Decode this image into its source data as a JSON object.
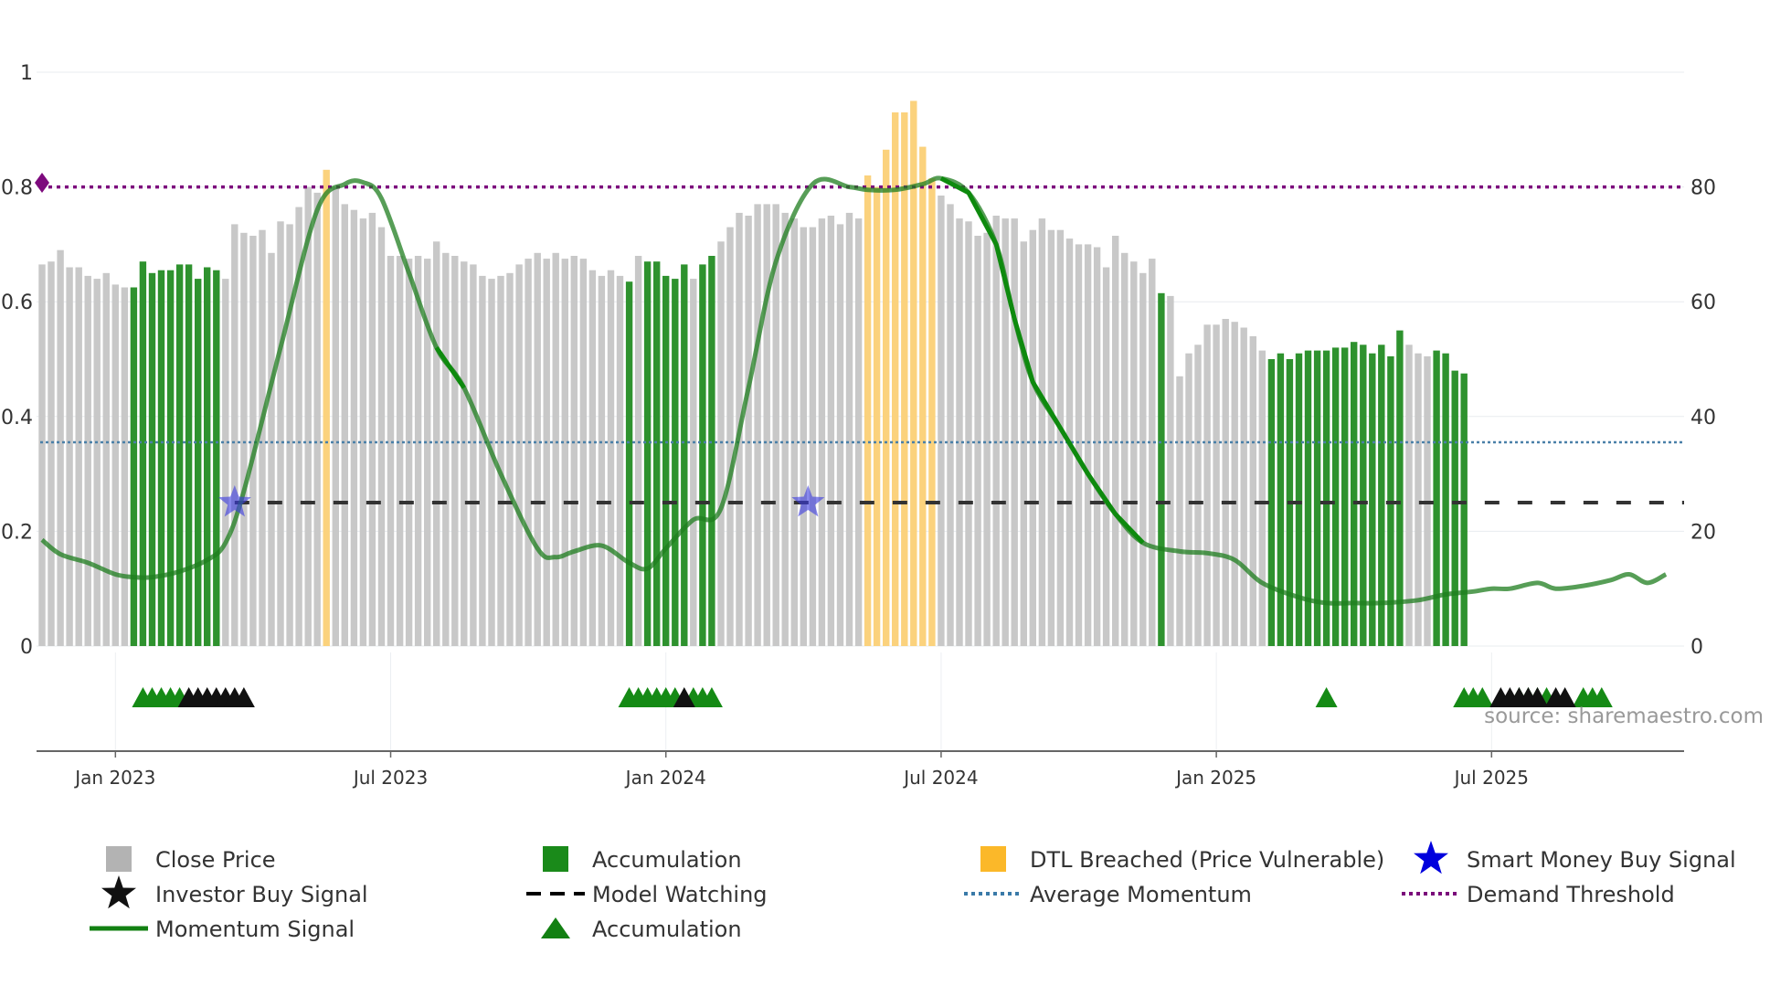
{
  "chart_data": {
    "type": "bar",
    "title": "",
    "source_text": "source: sharemaestro.com",
    "x_ticks": [
      "Jan 2023",
      "Jul 2023",
      "Jan 2024",
      "Jul 2024",
      "Jan 2025",
      "Jul 2025"
    ],
    "x_tick_index": [
      8,
      38,
      68,
      98,
      128,
      158
    ],
    "y_left": {
      "ticks": [
        0,
        0.2,
        0.4,
        0.6,
        0.8,
        1
      ],
      "labels": [
        "0",
        "0.2",
        "0.4",
        "0.6",
        "0.8",
        "1"
      ],
      "ylim": [
        0,
        1
      ]
    },
    "y_right": {
      "ticks": [
        0,
        20,
        40,
        60,
        80
      ],
      "labels": [
        "0",
        "20",
        "40",
        "60",
        "80"
      ],
      "ylim": [
        0,
        100
      ]
    },
    "price": [
      0.665,
      0.67,
      0.69,
      0.66,
      0.66,
      0.645,
      0.64,
      0.65,
      0.63,
      0.625,
      0.625,
      0.67,
      0.65,
      0.655,
      0.655,
      0.665,
      0.665,
      0.64,
      0.66,
      0.655,
      0.64,
      0.735,
      0.72,
      0.715,
      0.725,
      0.685,
      0.74,
      0.735,
      0.765,
      0.8,
      0.79,
      0.83,
      0.8,
      0.77,
      0.76,
      0.745,
      0.755,
      0.73,
      0.68,
      0.68,
      0.675,
      0.68,
      0.675,
      0.705,
      0.685,
      0.68,
      0.67,
      0.665,
      0.645,
      0.64,
      0.645,
      0.65,
      0.665,
      0.675,
      0.685,
      0.675,
      0.685,
      0.675,
      0.68,
      0.675,
      0.655,
      0.645,
      0.655,
      0.645,
      0.635,
      0.68,
      0.67,
      0.67,
      0.645,
      0.64,
      0.665,
      0.64,
      0.665,
      0.68,
      0.705,
      0.73,
      0.755,
      0.75,
      0.77,
      0.77,
      0.77,
      0.755,
      0.745,
      0.73,
      0.73,
      0.745,
      0.75,
      0.735,
      0.755,
      0.745,
      0.82,
      0.8,
      0.865,
      0.93,
      0.93,
      0.95,
      0.87,
      0.815,
      0.785,
      0.77,
      0.745,
      0.74,
      0.715,
      0.72,
      0.75,
      0.745,
      0.745,
      0.705,
      0.725,
      0.745,
      0.725,
      0.725,
      0.71,
      0.7,
      0.7,
      0.695,
      0.66,
      0.715,
      0.685,
      0.67,
      0.65,
      0.675,
      0.615,
      0.61,
      0.47,
      0.51,
      0.525,
      0.56,
      0.56,
      0.57,
      0.565,
      0.555,
      0.54,
      0.515,
      0.5,
      0.51,
      0.5,
      0.51,
      0.515,
      0.515,
      0.515,
      0.52,
      0.52,
      0.53,
      0.525,
      0.51,
      0.525,
      0.505,
      0.55,
      0.525,
      0.51,
      0.505,
      0.515,
      0.51,
      0.48,
      0.475
    ],
    "bar_category": [
      "close",
      "close",
      "close",
      "close",
      "close",
      "close",
      "close",
      "close",
      "close",
      "close",
      "accumulation",
      "accumulation",
      "accumulation",
      "accumulation",
      "accumulation",
      "accumulation",
      "accumulation",
      "accumulation",
      "accumulation",
      "accumulation",
      "close",
      "close",
      "close",
      "close",
      "close",
      "close",
      "close",
      "close",
      "close",
      "close",
      "close",
      "dtl",
      "close",
      "close",
      "close",
      "close",
      "close",
      "close",
      "close",
      "close",
      "close",
      "close",
      "close",
      "close",
      "close",
      "close",
      "close",
      "close",
      "close",
      "close",
      "close",
      "close",
      "close",
      "close",
      "close",
      "close",
      "close",
      "close",
      "close",
      "close",
      "close",
      "close",
      "close",
      "close",
      "accumulation",
      "close",
      "accumulation",
      "accumulation",
      "accumulation",
      "accumulation",
      "accumulation",
      "close",
      "accumulation",
      "accumulation",
      "close",
      "close",
      "close",
      "close",
      "close",
      "close",
      "close",
      "close",
      "close",
      "close",
      "close",
      "close",
      "close",
      "close",
      "close",
      "close",
      "dtl",
      "dtl",
      "dtl",
      "dtl",
      "dtl",
      "dtl",
      "dtl",
      "dtl",
      "close",
      "close",
      "close",
      "close",
      "close",
      "close",
      "close",
      "close",
      "close",
      "close",
      "close",
      "close",
      "close",
      "close",
      "close",
      "close",
      "close",
      "close",
      "close",
      "close",
      "close",
      "close",
      "close",
      "close",
      "accumulation",
      "close",
      "close",
      "close",
      "close",
      "close",
      "close",
      "close",
      "close",
      "close",
      "close",
      "close",
      "accumulation",
      "accumulation",
      "accumulation",
      "accumulation",
      "accumulation",
      "accumulation",
      "accumulation",
      "accumulation",
      "accumulation",
      "accumulation",
      "accumulation",
      "accumulation",
      "accumulation",
      "accumulation",
      "accumulation",
      "close",
      "close",
      "close",
      "accumulation",
      "accumulation",
      "accumulation",
      "accumulation"
    ],
    "momentum": {
      "x": [
        0,
        2,
        5,
        8,
        10,
        12,
        15,
        18,
        20,
        22,
        26,
        30,
        33,
        35,
        37,
        40,
        43,
        46,
        50,
        54,
        56,
        58,
        61,
        64,
        66,
        68,
        71,
        74,
        77,
        80,
        84,
        88,
        90,
        93,
        96,
        98,
        101,
        104,
        106,
        108,
        111,
        114,
        117,
        120,
        124,
        127,
        130,
        133,
        137,
        140,
        143,
        146,
        150,
        153,
        156,
        158,
        160,
        163,
        165,
        168,
        171,
        173,
        175,
        177
      ],
      "y": [
        18.5,
        16,
        14.5,
        12.5,
        12,
        12,
        13,
        15,
        18,
        27,
        52,
        76,
        80.5,
        80.8,
        78,
        65,
        52,
        45,
        30,
        17,
        15.5,
        16.5,
        17.5,
        14.5,
        13.5,
        17,
        22,
        24,
        45,
        67,
        80.5,
        80,
        79.5,
        79.5,
        80.5,
        81.5,
        79,
        70,
        57,
        46,
        38,
        30,
        23,
        18,
        16.5,
        16.2,
        15,
        11,
        8.5,
        7.5,
        7.5,
        7.5,
        8,
        9,
        9.5,
        10,
        10,
        11,
        10,
        10.5,
        11.5,
        12.5,
        11,
        12.5
      ],
      "strong_ranges": [
        [
          42,
          47
        ],
        [
          97,
          121
        ],
        [
          120,
          123
        ]
      ]
    },
    "average_momentum": 35.5,
    "demand_threshold": 80,
    "model_watching_level": 25,
    "model_watching_start": 21,
    "smart_money_buy_signals": [
      {
        "x": 21,
        "y": 25
      },
      {
        "x": 83.5,
        "y": 25
      }
    ],
    "accumulation_markers": [
      11,
      12,
      13,
      14,
      15,
      64,
      65,
      66,
      67,
      68,
      69,
      71,
      72,
      73,
      140,
      155,
      156,
      157,
      161,
      162,
      163,
      164,
      168,
      169,
      170
    ],
    "investor_buy_markers": [
      16,
      17,
      18,
      19,
      20,
      21,
      22,
      70,
      159,
      160,
      161,
      162,
      163,
      165,
      166
    ],
    "legend": [
      {
        "label": "Close Price",
        "symbol": "square",
        "color": "#b3b3b3"
      },
      {
        "label": "Accumulation",
        "symbol": "square",
        "color": "#1a8a1a"
      },
      {
        "label": "DTL Breached (Price Vulnerable)",
        "symbol": "square",
        "color": "#fbb829"
      },
      {
        "label": "Smart Money Buy Signal",
        "symbol": "star",
        "color": "#0000dd"
      },
      {
        "label": "Investor Buy Signal",
        "symbol": "star",
        "color": "#111111"
      },
      {
        "label": "Model Watching",
        "symbol": "dash",
        "color": "#000000"
      },
      {
        "label": "Average Momentum",
        "symbol": "dot",
        "color": "#3a7aa8"
      },
      {
        "label": "Demand Threshold",
        "symbol": "dot",
        "color": "#7a0a7a"
      },
      {
        "label": "Momentum Signal",
        "symbol": "line",
        "color": "#128012"
      },
      {
        "label": "Accumulation",
        "symbol": "triangle",
        "color": "#128012"
      }
    ],
    "colors": {
      "close": "#c8c8c8",
      "accumulation": "#2e922e",
      "dtl": "#fbd27d",
      "momentum": "#1f7d1f",
      "momentum_strong": "#0e8a0e",
      "average": "#4a80a8",
      "threshold": "#7d0a7d",
      "watching": "#333333"
    }
  }
}
